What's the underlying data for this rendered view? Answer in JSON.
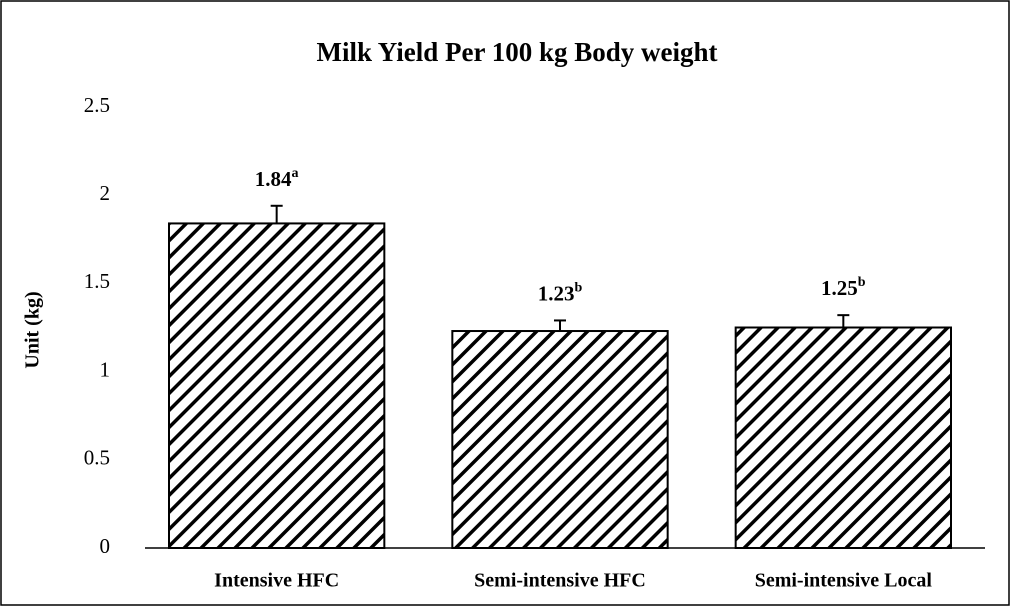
{
  "chart_data": {
    "type": "bar",
    "title": "Milk Yield Per 100 kg Body weight",
    "ylabel": "Unit  (kg)",
    "categories": [
      "Intensive HFC",
      "Semi-intensive HFC",
      "Semi-intensive Local"
    ],
    "values": [
      1.84,
      1.23,
      1.25
    ],
    "errors": [
      0.1,
      0.06,
      0.07
    ],
    "significance": [
      "a",
      "b",
      "b"
    ],
    "color": "#000000",
    "hatch": true,
    "ylim": [
      0,
      2.5
    ],
    "yticks": [
      0,
      0.5,
      1,
      1.5,
      2,
      2.5
    ],
    "grid": false
  }
}
